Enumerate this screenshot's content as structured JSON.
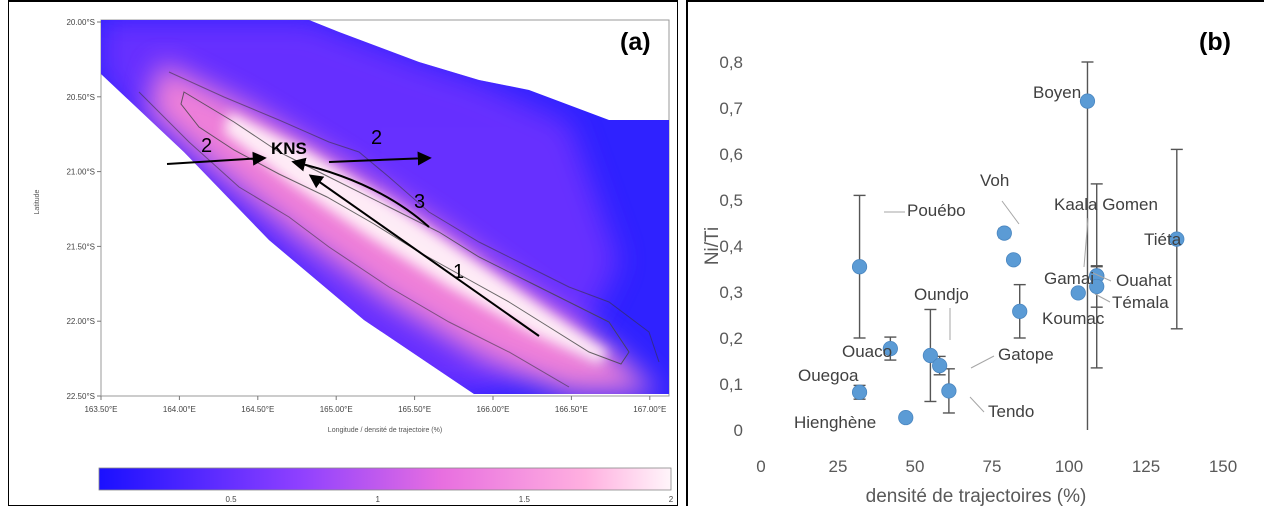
{
  "panel_a": {
    "label": "(a)",
    "lat_ticks": [
      "20.00°S",
      "20.50°S",
      "21.00°S",
      "21.50°S",
      "22.00°S",
      "22.50°S"
    ],
    "lon_ticks": [
      "163.50°E",
      "164.00°E",
      "164.50°E",
      "165.00°E",
      "165.50°E",
      "166.00°E",
      "166.50°E",
      "167.00°E"
    ],
    "ylabel": "Latitude",
    "xlabel": "Longitude / densité de trajectoire (%)",
    "colorbar_ticks": [
      "0.5",
      "1",
      "1.5",
      "2"
    ],
    "colorbar_range": [
      0.05,
      2.0
    ],
    "site_label": "KNS",
    "arrow_labels": [
      "2",
      "2",
      "3",
      "1"
    ],
    "colors": {
      "low": "#2b1fff",
      "mid": "#c070ff",
      "high": "#ff88cc",
      "peak": "#fff0f5"
    }
  },
  "chart_data": {
    "type": "scatter",
    "panel_label": "(b)",
    "xlabel": "densité de trajectoires (%)",
    "ylabel": "Ni/Ti",
    "xlim": [
      0,
      150
    ],
    "ylim": [
      0,
      0.8
    ],
    "x_ticks": [
      "0",
      "25",
      "50",
      "75",
      "100",
      "125",
      "150"
    ],
    "y_ticks": [
      "0",
      "0,1",
      "0,2",
      "0,3",
      "0,4",
      "0,5",
      "0,6",
      "0,7",
      "0,8"
    ],
    "grid": false,
    "marker_color": "#5b9bd5",
    "points": [
      {
        "label": "Boyen",
        "x": 106,
        "y": 0.715,
        "err_lo": 0.715,
        "err_hi": 0.085
      },
      {
        "label": "Tiéta",
        "x": 135,
        "y": 0.415,
        "err_lo": 0.195,
        "err_hi": 0.195
      },
      {
        "label": "Voh",
        "x": 79,
        "y": 0.428,
        "err_lo": 0.01,
        "err_hi": 0.01
      },
      {
        "label": "Pouébo",
        "x": 32,
        "y": 0.355,
        "err_lo": 0.155,
        "err_hi": 0.155
      },
      {
        "label": "Kaala Gomen",
        "x": 109,
        "y": 0.335,
        "err_lo": 0.2,
        "err_hi": 0.2
      },
      {
        "label": "Ouahat",
        "x": 109,
        "y": 0.335,
        "err_lo": 0.02,
        "err_hi": 0.02
      },
      {
        "label": "Gamai",
        "x": 82,
        "y": 0.37,
        "err_lo": 0,
        "err_hi": 0
      },
      {
        "label": "Témala",
        "x": 109,
        "y": 0.312,
        "err_lo": 0.045,
        "err_hi": 0.045
      },
      {
        "label": "",
        "x": 103,
        "y": 0.298,
        "err_lo": 0,
        "err_hi": 0
      },
      {
        "label": "Koumac",
        "x": 84,
        "y": 0.258,
        "err_lo": 0.058,
        "err_hi": 0.058
      },
      {
        "label": "Oundjo",
        "x": 55,
        "y": 0.162,
        "err_lo": 0.1,
        "err_hi": 0.1
      },
      {
        "label": "Ouaco",
        "x": 42,
        "y": 0.177,
        "err_lo": 0.025,
        "err_hi": 0.025
      },
      {
        "label": "Gatope",
        "x": 58,
        "y": 0.14,
        "err_lo": 0.02,
        "err_hi": 0.02
      },
      {
        "label": "Ouegoa",
        "x": 32,
        "y": 0.082,
        "err_lo": 0.015,
        "err_hi": 0.015
      },
      {
        "label": "Tendo",
        "x": 61,
        "y": 0.085,
        "err_lo": 0.048,
        "err_hi": 0.048
      },
      {
        "label": "Hienghène",
        "x": 47,
        "y": 0.027,
        "err_lo": 0,
        "err_hi": 0
      }
    ]
  }
}
